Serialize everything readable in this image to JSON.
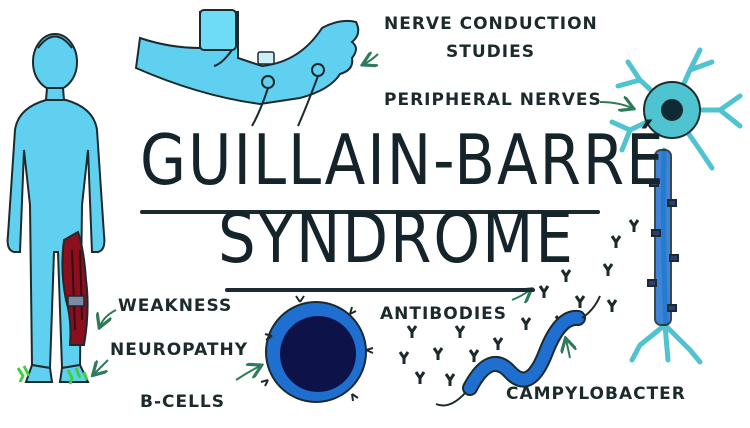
{
  "title_line1": "GUILLAIN-BARRÉ",
  "title_line2": "SYNDROME",
  "labels": {
    "nerve_conduction_1": "NERVE CONDUCTION",
    "nerve_conduction_2": "STUDIES",
    "peripheral_nerves": "PERIPHERAL NERVES",
    "weakness": "WEAKNESS",
    "neuropathy": "NEUROPATHY",
    "b_cells": "B-CELLS",
    "antibodies": "ANTIBODIES",
    "campylobacter": "CAMPYLOBACTER"
  },
  "colors": {
    "body_blue": "#5fd0f0",
    "nerve_teal": "#4fc3cf",
    "dark_blue": "#0d1f6b",
    "arrow_green": "#2f7a5a",
    "muscle_red": "#8a1020",
    "bacteria_blue": "#1e6fd0",
    "accent_green": "#3fd040",
    "ink": "#1d2a2c"
  }
}
